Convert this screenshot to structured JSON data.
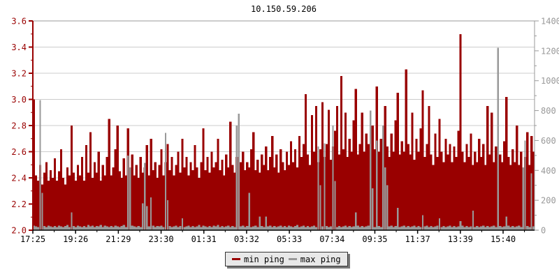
{
  "colors": {
    "min_ping": "#990000",
    "max_ping": "#999999",
    "grid": "#cccccc",
    "frame": "#999999",
    "axis_bottom": "#000000",
    "left_tick_text": "#990000",
    "right_tick_text": "#999999",
    "bottom_tick_text": "#000000",
    "title_text": "#000000",
    "legend_bg": "#e8e8e8"
  },
  "chart_data": {
    "type": "bar",
    "title": "10.150.59.206",
    "grid": "horizontal",
    "legend_position": "bottom-center",
    "x_axis": {
      "tick_labels": [
        "17:25",
        "19:26",
        "21:29",
        "23:30",
        "01:31",
        "03:32",
        "05:33",
        "07:34",
        "09:35",
        "11:37",
        "13:39",
        "15:40"
      ],
      "minor_ticks_between_labels": 1
    },
    "y_axis_left": {
      "min": 2.0,
      "max": 3.6,
      "tick_step": 0.2,
      "minor_step": 0.1,
      "tick_labels_top_to_bottom": [
        "3.6",
        "3.4",
        "3.2",
        "3.0",
        "2.8",
        "2.6",
        "2.4",
        "2.2",
        "2.0"
      ]
    },
    "y_axis_right": {
      "min": 0,
      "max": 1400,
      "tick_step": 200,
      "minor_step": 100,
      "tick_labels_top_to_bottom": [
        "1400",
        "1200",
        "1000",
        "800",
        "600",
        "400",
        "200",
        "0"
      ]
    },
    "series": [
      {
        "name": "min ping",
        "axis": "left",
        "color": "#990000",
        "values": [
          3.0,
          2.42,
          2.38,
          2.5,
          2.35,
          2.44,
          2.52,
          2.38,
          2.46,
          2.4,
          2.55,
          2.38,
          2.45,
          2.62,
          2.4,
          2.35,
          2.48,
          2.42,
          2.8,
          2.44,
          2.38,
          2.5,
          2.42,
          2.56,
          2.38,
          2.65,
          2.44,
          2.75,
          2.4,
          2.52,
          2.44,
          2.6,
          2.38,
          2.5,
          2.42,
          2.56,
          2.85,
          2.42,
          2.48,
          2.62,
          2.8,
          2.45,
          2.4,
          2.55,
          2.42,
          2.78,
          2.48,
          2.58,
          2.42,
          2.5,
          2.4,
          2.56,
          2.44,
          2.48,
          2.65,
          2.42,
          2.7,
          2.46,
          2.52,
          2.4,
          2.5,
          2.62,
          2.42,
          2.52,
          2.66,
          2.46,
          2.56,
          2.42,
          2.5,
          2.6,
          2.44,
          2.7,
          2.48,
          2.56,
          2.42,
          2.52,
          2.46,
          2.65,
          2.48,
          2.4,
          2.52,
          2.78,
          2.46,
          2.56,
          2.44,
          2.6,
          2.48,
          2.52,
          2.7,
          2.46,
          2.54,
          2.42,
          2.58,
          2.48,
          2.83,
          2.5,
          2.44,
          2.56,
          2.46,
          2.52,
          2.6,
          2.46,
          2.52,
          2.48,
          2.62,
          2.75,
          2.46,
          2.54,
          2.44,
          2.58,
          2.5,
          2.64,
          2.46,
          2.56,
          2.72,
          2.48,
          2.58,
          2.44,
          2.62,
          2.52,
          2.46,
          2.6,
          2.5,
          2.68,
          2.52,
          2.62,
          2.48,
          2.72,
          2.56,
          2.66,
          3.04,
          2.58,
          2.5,
          2.88,
          2.6,
          2.95,
          2.52,
          2.62,
          2.98,
          2.56,
          2.66,
          2.92,
          2.54,
          2.64,
          2.76,
          2.95,
          2.58,
          3.18,
          2.62,
          2.9,
          2.56,
          2.7,
          2.6,
          2.84,
          3.08,
          2.58,
          2.66,
          2.9,
          2.6,
          2.74,
          2.66,
          2.56,
          2.8,
          2.62,
          3.1,
          2.6,
          2.7,
          2.58,
          2.95,
          2.64,
          2.56,
          2.74,
          2.6,
          2.84,
          3.05,
          2.58,
          2.68,
          2.6,
          3.23,
          2.66,
          2.58,
          2.9,
          2.54,
          2.7,
          2.6,
          2.78,
          3.07,
          2.56,
          2.66,
          2.95,
          2.58,
          2.5,
          2.74,
          2.56,
          2.85,
          2.6,
          2.52,
          2.7,
          2.58,
          2.66,
          2.52,
          2.64,
          2.56,
          2.76,
          3.5,
          2.6,
          2.52,
          2.66,
          2.56,
          2.74,
          2.5,
          2.6,
          2.52,
          2.7,
          2.56,
          2.66,
          2.5,
          2.95,
          2.58,
          2.9,
          2.52,
          2.64,
          2.48,
          2.58,
          2.52,
          2.68,
          3.02,
          2.56,
          2.5,
          2.62,
          2.52,
          2.8,
          2.5,
          2.6,
          2.46,
          2.56,
          2.75,
          2.5,
          2.72,
          2.6
        ]
      },
      {
        "name": "max ping",
        "axis": "right",
        "color": "#999999",
        "values": [
          30,
          25,
          20,
          870,
          250,
          28,
          22,
          30,
          25,
          20,
          28,
          22,
          30,
          25,
          20,
          28,
          35,
          22,
          120,
          28,
          22,
          30,
          25,
          20,
          28,
          22,
          35,
          25,
          30,
          22,
          28,
          25,
          35,
          22,
          30,
          25,
          20,
          28,
          22,
          30,
          25,
          20,
          28,
          35,
          22,
          500,
          420,
          30,
          25,
          20,
          28,
          22,
          180,
          450,
          160,
          25,
          220,
          30,
          22,
          28,
          25,
          30,
          20,
          650,
          200,
          28,
          22,
          25,
          30,
          20,
          28,
          80,
          22,
          25,
          30,
          20,
          28,
          22,
          25,
          35,
          22,
          30,
          25,
          20,
          28,
          22,
          30,
          25,
          35,
          20,
          28,
          22,
          25,
          30,
          20,
          28,
          22,
          700,
          780,
          25,
          30,
          20,
          28,
          250,
          22,
          25,
          30,
          20,
          90,
          28,
          22,
          90,
          25,
          30,
          20,
          28,
          22,
          25,
          30,
          20,
          28,
          22,
          30,
          25,
          20,
          28,
          35,
          22,
          25,
          30,
          20,
          28,
          22,
          25,
          30,
          20,
          560,
          300,
          25,
          580,
          28,
          22,
          25,
          700,
          330,
          20,
          28,
          22,
          25,
          30,
          20,
          28,
          22,
          25,
          120,
          30,
          20,
          28,
          22,
          25,
          30,
          800,
          280,
          20,
          600,
          28,
          22,
          700,
          420,
          300,
          25,
          30,
          20,
          28,
          150,
          22,
          25,
          30,
          20,
          28,
          22,
          25,
          30,
          20,
          28,
          22,
          100,
          25,
          30,
          20,
          28,
          22,
          25,
          30,
          80,
          20,
          28,
          22,
          25,
          30,
          20,
          28,
          22,
          25,
          60,
          30,
          20,
          28,
          22,
          25,
          130,
          20,
          28,
          22,
          25,
          30,
          20,
          28,
          22,
          25,
          30,
          20,
          1220,
          28,
          22,
          25,
          90,
          30,
          20,
          28,
          22,
          25,
          30,
          20,
          420,
          600,
          28,
          22,
          380,
          25
        ]
      }
    ]
  }
}
